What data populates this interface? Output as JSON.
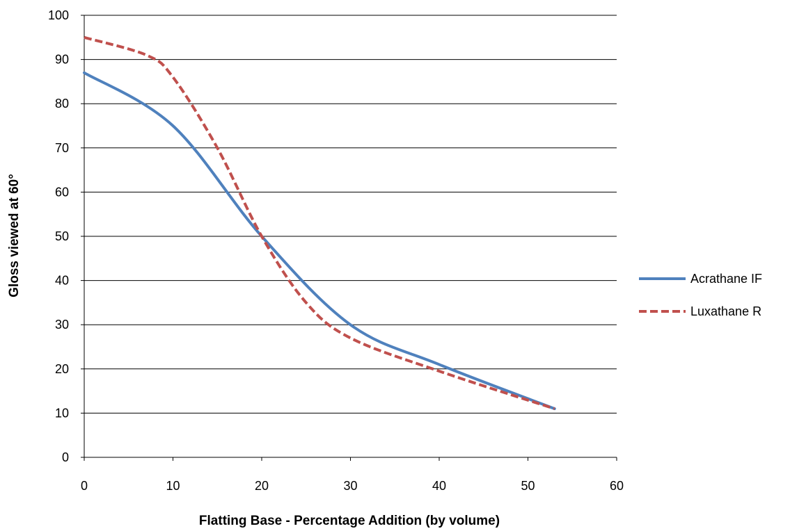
{
  "chart_data": {
    "type": "line",
    "title": "",
    "xlabel": "Flatting Base - Percentage Addition (by volume)",
    "ylabel": "Gloss viewed at 60°",
    "xlim": [
      0,
      60
    ],
    "ylim": [
      0,
      100
    ],
    "x_ticks": [
      "0",
      "10",
      "20",
      "30",
      "40",
      "50",
      "60"
    ],
    "y_ticks": [
      "0",
      "10",
      "20",
      "30",
      "40",
      "50",
      "60",
      "70",
      "80",
      "90",
      "100"
    ],
    "grid": "horizontal",
    "legend_position": "right",
    "series": [
      {
        "name": "Acrathane IF",
        "color": "#4f81bd",
        "style": "solid",
        "points": [
          {
            "x": 0,
            "y": 87
          },
          {
            "x": 10,
            "y": 75
          },
          {
            "x": 20,
            "y": 50
          },
          {
            "x": 30,
            "y": 30
          },
          {
            "x": 40,
            "y": 21
          },
          {
            "x": 53,
            "y": 11
          }
        ]
      },
      {
        "name": "Luxathane R",
        "color": "#c0504d",
        "style": "dashed",
        "points": [
          {
            "x": 0,
            "y": 95
          },
          {
            "x": 7,
            "y": 91
          },
          {
            "x": 10,
            "y": 86
          },
          {
            "x": 15,
            "y": 70
          },
          {
            "x": 20,
            "y": 50
          },
          {
            "x": 25,
            "y": 35
          },
          {
            "x": 30,
            "y": 27
          },
          {
            "x": 40,
            "y": 19.5
          },
          {
            "x": 53,
            "y": 11
          }
        ]
      }
    ]
  }
}
